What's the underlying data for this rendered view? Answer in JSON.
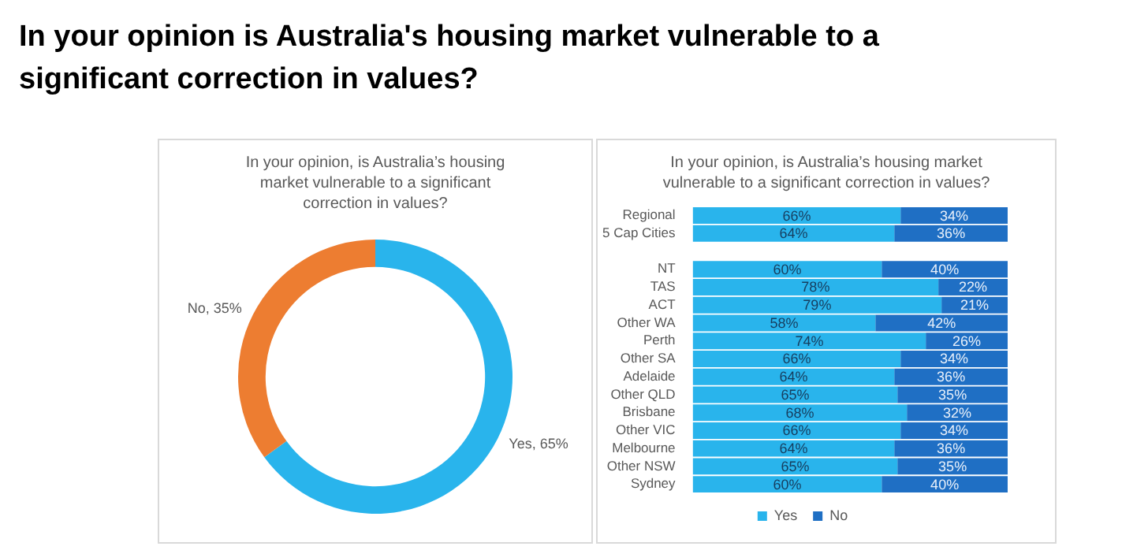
{
  "chart_data": [
    {
      "type": "donut",
      "title": "In your opinion is Australia's housing market vulnerable to a significant correction in values?",
      "subtitle": "In your opinion, is Australia’s housing market vulnerable to a significant correction in values?",
      "categories": [
        "Yes",
        "No"
      ],
      "values": [
        65,
        35
      ],
      "colors": [
        "#29b4ec",
        "#ed7d31"
      ],
      "value_labels": [
        "65%",
        "35%"
      ],
      "legend": false
    },
    {
      "type": "bar",
      "orientation": "horizontal",
      "stacked": true,
      "subtitle": "In your opinion, is Australia’s housing market vulnerable to a significant correction in values?",
      "categories": [
        "Regional",
        "5 Cap Cities",
        null,
        "NT",
        "TAS",
        "ACT",
        "Other WA",
        "Perth",
        "Other SA",
        "Adelaide",
        "Other QLD",
        "Brisbane",
        "Other VIC",
        "Melbourne",
        "Other NSW",
        "Sydney"
      ],
      "series": [
        {
          "name": "Yes",
          "color": "#29b4ec",
          "values": [
            66,
            64,
            null,
            60,
            78,
            79,
            58,
            74,
            66,
            64,
            65,
            68,
            66,
            64,
            65,
            60
          ],
          "value_labels": [
            "66%",
            "64%",
            null,
            "60%",
            "78%",
            "79%",
            "58%",
            "74%",
            "66%",
            "64%",
            "65%",
            "68%",
            "66%",
            "64%",
            "65%",
            "60%"
          ]
        },
        {
          "name": "No",
          "color": "#1f6fc4",
          "values": [
            34,
            36,
            null,
            40,
            22,
            21,
            42,
            26,
            34,
            36,
            35,
            32,
            34,
            36,
            35,
            40
          ],
          "value_labels": [
            "34%",
            "36%",
            null,
            "40%",
            "22%",
            "21%",
            "42%",
            "26%",
            "34%",
            "36%",
            "35%",
            "32%",
            "34%",
            "36%",
            "35%",
            "40%"
          ]
        }
      ],
      "xlim": [
        0,
        100
      ],
      "tick_labels": "y",
      "legend": "bottom"
    }
  ]
}
